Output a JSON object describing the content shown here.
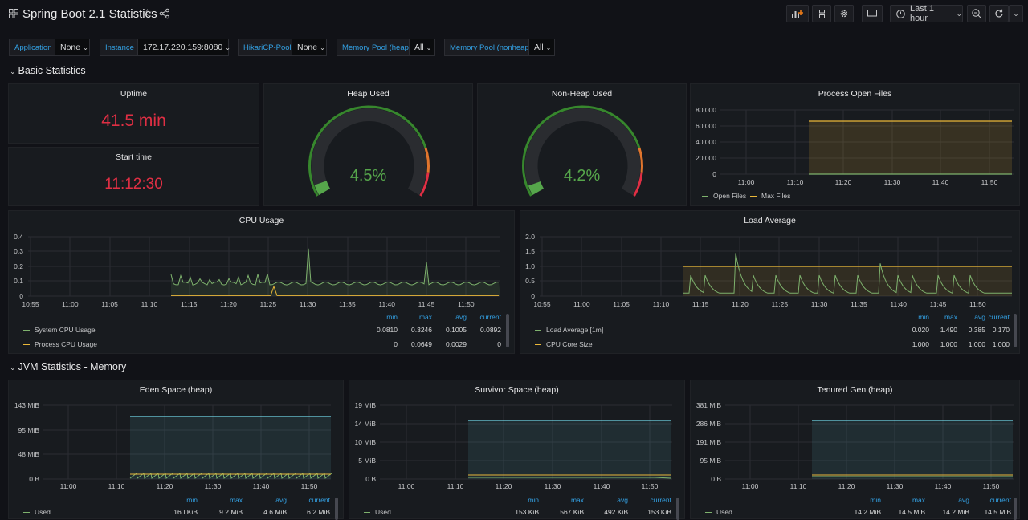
{
  "dashboard": {
    "title": "Spring Boot 2.1 Statistics",
    "time_range": "Last 1 hour"
  },
  "icons": {
    "grid": "dashboards-icon",
    "star": "star-icon",
    "share": "share-icon",
    "add_panel": "add-panel-icon",
    "save": "save-icon",
    "settings": "gear-icon",
    "tv": "tv-mode-icon",
    "clock": "clock-icon",
    "zoom_out": "zoom-out-icon",
    "refresh": "refresh-icon"
  },
  "variables": [
    {
      "label": "Application",
      "value": "None"
    },
    {
      "label": "Instance",
      "value": "172.17.220.159:8080"
    },
    {
      "label": "HikariCP-Pool",
      "value": "None"
    },
    {
      "label": "Memory Pool (heap)",
      "value": "All"
    },
    {
      "label": "Memory Pool (nonheap)",
      "value": "All"
    }
  ],
  "rows": {
    "basic": "Basic Statistics",
    "jvm_memory": "JVM Statistics - Memory"
  },
  "uptime": {
    "title": "Uptime",
    "value": "41.5 min"
  },
  "start_time": {
    "title": "Start time",
    "value": "11:12:30"
  },
  "heap_used": {
    "title": "Heap Used",
    "value": "4.5%",
    "percent": 4.5
  },
  "nonheap_used": {
    "title": "Non-Heap Used",
    "value": "4.2%",
    "percent": 4.2
  },
  "colors": {
    "green": "#37872d",
    "bright_green": "#56a64b",
    "orange": "#e0752d",
    "red": "#e02f44",
    "yellow": "#e0b400",
    "series_green": "#7eb26d",
    "series_yellow": "#eab839",
    "series_blue": "#6ed0e0",
    "accent_blue": "#33a2e5"
  },
  "open_files": {
    "title": "Process Open Files",
    "y_ticks": [
      "80,000",
      "60,000",
      "40,000",
      "20,000",
      "0"
    ],
    "x_ticks": [
      "11:00",
      "11:10",
      "11:20",
      "11:30",
      "11:40",
      "11:50"
    ],
    "legend": [
      "Open Files",
      "Max Files"
    ]
  },
  "cpu": {
    "title": "CPU Usage",
    "y_ticks": [
      "0.4",
      "0.3",
      "0.2",
      "0.1",
      "0"
    ],
    "x_ticks": [
      "10:55",
      "11:00",
      "11:05",
      "11:10",
      "11:15",
      "11:20",
      "11:25",
      "11:30",
      "11:35",
      "11:40",
      "11:45",
      "11:50"
    ],
    "headers": [
      "min",
      "max",
      "avg",
      "current"
    ],
    "series": [
      {
        "name": "System CPU Usage",
        "values": [
          "0.0810",
          "0.3246",
          "0.1005",
          "0.0892"
        ]
      },
      {
        "name": "Process CPU Usage",
        "values": [
          "0",
          "0.0649",
          "0.0029",
          "0"
        ]
      }
    ]
  },
  "load": {
    "title": "Load Average",
    "y_ticks": [
      "2.0",
      "1.5",
      "1.0",
      "0.5",
      "0"
    ],
    "x_ticks": [
      "10:55",
      "11:00",
      "11:05",
      "11:10",
      "11:15",
      "11:20",
      "11:25",
      "11:30",
      "11:35",
      "11:40",
      "11:45",
      "11:50"
    ],
    "headers": [
      "min",
      "max",
      "avg",
      "current"
    ],
    "series": [
      {
        "name": "Load Average [1m]",
        "values": [
          "0.020",
          "1.490",
          "0.385",
          "0.170"
        ]
      },
      {
        "name": "CPU Core Size",
        "values": [
          "1.000",
          "1.000",
          "1.000",
          "1.000"
        ]
      }
    ]
  },
  "eden": {
    "title": "Eden Space (heap)",
    "y_ticks": [
      "143 MiB",
      "95 MiB",
      "48 MiB",
      "0 B"
    ],
    "x_ticks": [
      "11:00",
      "11:10",
      "11:20",
      "11:30",
      "11:40",
      "11:50"
    ],
    "headers": [
      "min",
      "max",
      "avg",
      "current"
    ],
    "series": [
      {
        "name": "Used",
        "values": [
          "160 KiB",
          "9.2 MiB",
          "4.6 MiB",
          "6.2 MiB"
        ]
      }
    ]
  },
  "survivor": {
    "title": "Survivor Space (heap)",
    "y_ticks": [
      "19 MiB",
      "14 MiB",
      "10 MiB",
      "5 MiB",
      "0 B"
    ],
    "x_ticks": [
      "11:00",
      "11:10",
      "11:20",
      "11:30",
      "11:40",
      "11:50"
    ],
    "headers": [
      "min",
      "max",
      "avg",
      "current"
    ],
    "series": [
      {
        "name": "Used",
        "values": [
          "153 KiB",
          "567 KiB",
          "492 KiB",
          "153 KiB"
        ]
      }
    ]
  },
  "tenured": {
    "title": "Tenured Gen (heap)",
    "y_ticks": [
      "381 MiB",
      "286 MiB",
      "191 MiB",
      "95 MiB",
      "0 B"
    ],
    "x_ticks": [
      "11:00",
      "11:10",
      "11:20",
      "11:30",
      "11:40",
      "11:50"
    ],
    "headers": [
      "min",
      "max",
      "avg",
      "current"
    ],
    "series": [
      {
        "name": "Used",
        "values": [
          "14.2 MiB",
          "14.5 MiB",
          "14.2 MiB",
          "14.5 MiB"
        ]
      }
    ]
  }
}
